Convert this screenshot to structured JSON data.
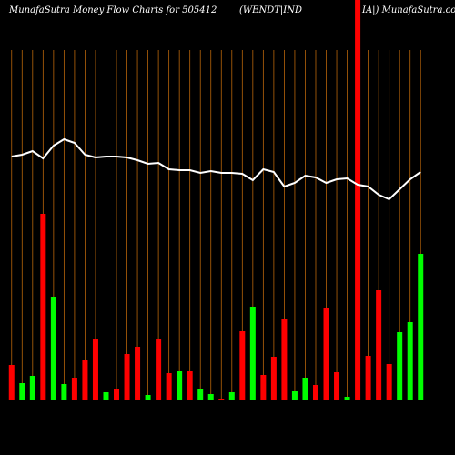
{
  "chart_data": {
    "type": "bar",
    "title_parts": [
      "MunafaSutra  Money Flow  Charts for 505412",
      "(WENDT|IND",
      "IA|) MunafaSutra.com"
    ],
    "categories": [
      null,
      null,
      null,
      null,
      null,
      null,
      null,
      null,
      null,
      null,
      null,
      null,
      null,
      null,
      null,
      null,
      null,
      null,
      null,
      null,
      null,
      null,
      null,
      null,
      null,
      null,
      null,
      null,
      null,
      null,
      null,
      null,
      null,
      null,
      null,
      null,
      null,
      null,
      null,
      null
    ],
    "values": [
      39,
      19,
      27,
      205,
      114,
      18,
      25,
      44,
      68,
      9,
      12,
      51,
      59,
      6,
      67,
      30,
      32,
      32,
      13,
      7,
      2,
      9,
      76,
      103,
      28,
      48,
      89,
      10,
      25,
      17,
      102,
      31,
      4,
      440,
      49,
      121,
      40,
      75,
      86,
      161
    ],
    "bar_colors": [
      "#ff0000",
      "#00ff00",
      "#00ff00",
      "#ff0000",
      "#00ff00",
      "#00ff00",
      "#ff0000",
      "#ff0000",
      "#ff0000",
      "#00ff00",
      "#ff0000",
      "#ff0000",
      "#ff0000",
      "#00ff00",
      "#ff0000",
      "#ff0000",
      "#00ff00",
      "#ff0000",
      "#00ff00",
      "#00ff00",
      "#ff0000",
      "#00ff00",
      "#ff0000",
      "#00ff00",
      "#ff0000",
      "#ff0000",
      "#ff0000",
      "#00ff00",
      "#00ff00",
      "#ff0000",
      "#ff0000",
      "#ff0000",
      "#00ff00",
      "#ff0000",
      "#ff0000",
      "#ff0000",
      "#ff0000",
      "#00ff00",
      "#00ff00",
      "#00ff00"
    ],
    "line": {
      "color": "#ffffff",
      "values": [
        268,
        270,
        274,
        266,
        280,
        287,
        283,
        270,
        267,
        268,
        268,
        267,
        264,
        260,
        261,
        254,
        253,
        253,
        250,
        252,
        250,
        250,
        249,
        242,
        254,
        251,
        235,
        239,
        247,
        245,
        239,
        243,
        244,
        237,
        235,
        226,
        221,
        232,
        243,
        251
      ]
    },
    "ylim": [
      0,
      440
    ],
    "guide_color": "#b8650a"
  }
}
